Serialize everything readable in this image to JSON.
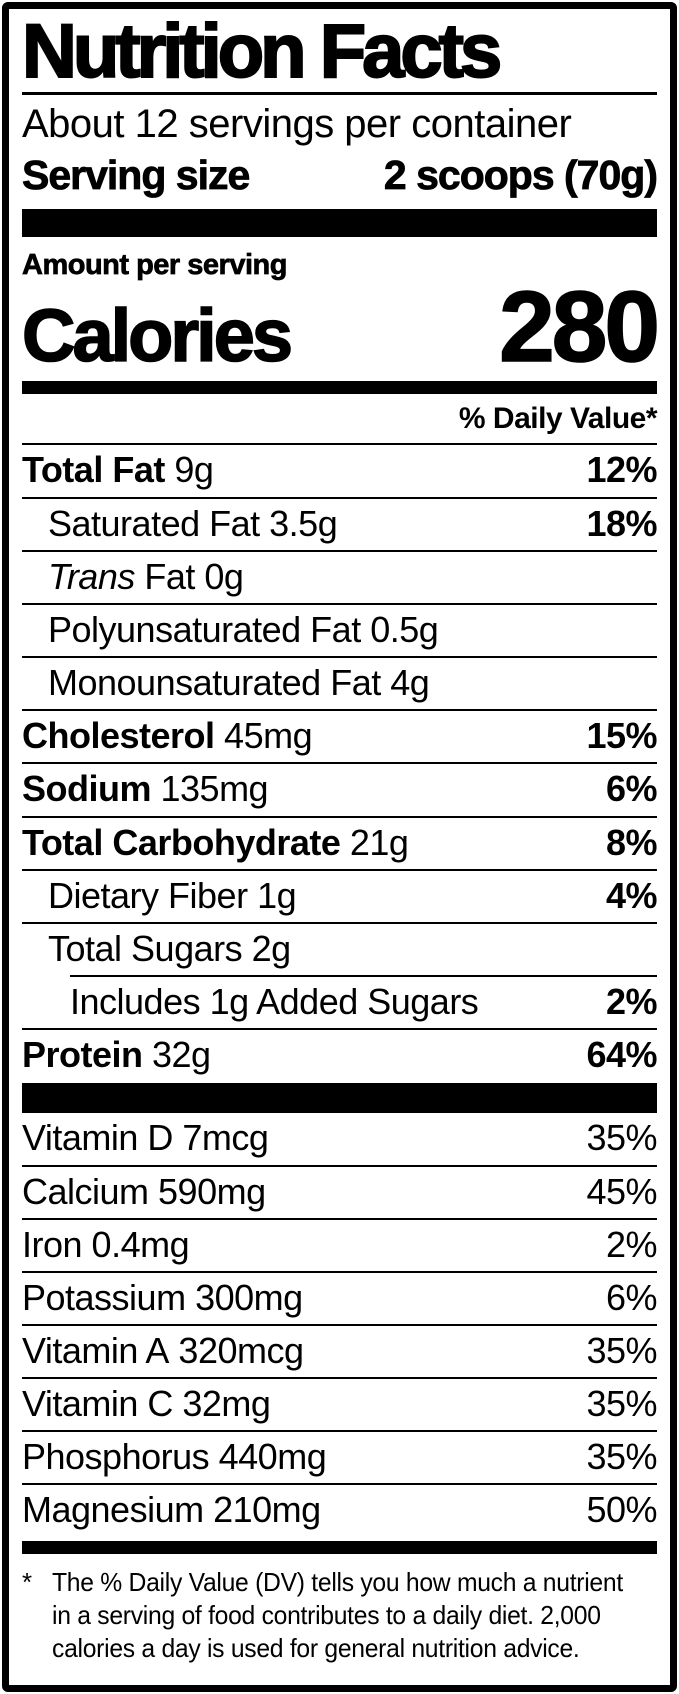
{
  "colors": {
    "text": "#000000",
    "background": "#ffffff"
  },
  "label": {
    "title": "Nutrition Facts",
    "servings_per_container": "About 12 servings per container",
    "serving_size_label": "Serving size",
    "serving_size_value": "2 scoops (70g)",
    "amount_per_serving": "Amount per serving",
    "calories_label": "Calories",
    "calories_value": "280",
    "daily_value_header": "% Daily Value*",
    "nutrients": [
      {
        "name": "Total Fat",
        "amount": "9g",
        "dv": "12%",
        "bold_name": true,
        "indent": 0
      },
      {
        "name": "Saturated Fat",
        "amount": "3.5g",
        "dv": "18%",
        "indent": 1
      },
      {
        "italic_prefix": "Trans",
        "name": "Fat",
        "amount": "0g",
        "dv": "",
        "indent": 1
      },
      {
        "name": "Polyunsaturated Fat",
        "amount": "0.5g",
        "dv": "",
        "indent": 1
      },
      {
        "name": "Monounsaturated Fat",
        "amount": "4g",
        "dv": "",
        "indent": 1
      },
      {
        "name": "Cholesterol",
        "amount": "45mg",
        "dv": "15%",
        "bold_name": true,
        "indent": 0
      },
      {
        "name": "Sodium",
        "amount": "135mg",
        "dv": "6%",
        "bold_name": true,
        "indent": 0
      },
      {
        "name": "Total Carbohydrate",
        "amount": "21g",
        "dv": "8%",
        "bold_name": true,
        "indent": 0
      },
      {
        "name": "Dietary Fiber",
        "amount": "1g",
        "dv": "4%",
        "indent": 1
      },
      {
        "name": "Total Sugars",
        "amount": "2g",
        "dv": "",
        "indent": 1
      },
      {
        "name": "Includes 1g Added Sugars",
        "amount": "",
        "dv": "2%",
        "indent": 2
      },
      {
        "name": "Protein",
        "amount": "32g",
        "dv": "64%",
        "bold_name": true,
        "indent": 0
      }
    ],
    "micronutrients": [
      {
        "name": "Vitamin D",
        "amount": "7mcg",
        "dv": "35%"
      },
      {
        "name": "Calcium",
        "amount": "590mg",
        "dv": "45%"
      },
      {
        "name": "Iron",
        "amount": "0.4mg",
        "dv": "2%"
      },
      {
        "name": "Potassium",
        "amount": "300mg",
        "dv": "6%"
      },
      {
        "name": "Vitamin A",
        "amount": "320mcg",
        "dv": "35%"
      },
      {
        "name": "Vitamin C",
        "amount": "32mg",
        "dv": "35%"
      },
      {
        "name": "Phosphorus",
        "amount": "440mg",
        "dv": "35%"
      },
      {
        "name": "Magnesium",
        "amount": "210mg",
        "dv": "50%"
      }
    ],
    "footnote_marker": "*",
    "footnote_lines": [
      "The % Daily Value (DV) tells you how much a nutrient",
      "in a serving of food contributes to a daily diet. 2,000",
      "calories a day is used for general nutrition advice."
    ],
    "footnote": "The % Daily Value (DV) tells you how much a nutrient in a serving of food contributes to a daily diet. 2,000 calories a day is used for general nutrition advice."
  }
}
